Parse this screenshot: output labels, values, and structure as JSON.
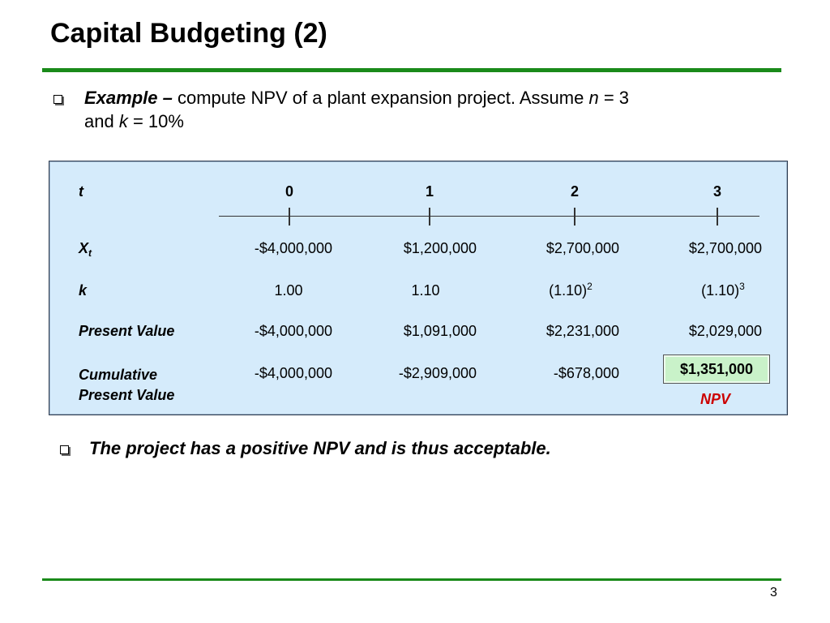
{
  "slide": {
    "title": "Capital Budgeting (2)",
    "page_number": "3"
  },
  "intro": {
    "lead": "Example –",
    "text_a": " compute NPV of a plant expansion project. Assume ",
    "n_var": "n",
    "n_eq": " = 3",
    "text_b": "and ",
    "k_var": "k",
    "k_eq": " = 10%"
  },
  "table": {
    "row_labels": {
      "t": "t",
      "x_base": "X",
      "x_sub": "t",
      "k": "k",
      "pv": "Present Value",
      "cum_line1": "Cumulative",
      "cum_line2": "Present Value"
    },
    "periods": [
      "0",
      "1",
      "2",
      "3"
    ],
    "cash_flows": [
      "-$4,000,000",
      "$1,200,000",
      "$2,700,000",
      "$2,700,000"
    ],
    "k_values": [
      {
        "base": "1.00",
        "exp": ""
      },
      {
        "base": "1.10",
        "exp": ""
      },
      {
        "base": "(1.10)",
        "exp": "2"
      },
      {
        "base": "(1.10)",
        "exp": "3"
      }
    ],
    "present_values": [
      "-$4,000,000",
      "$1,091,000",
      "$2,231,000",
      "$2,029,000"
    ],
    "cumulative": [
      "-$4,000,000",
      "-$2,909,000",
      "-$678,000",
      "$1,351,000"
    ],
    "npv_caption": "NPV"
  },
  "conclusion": "The project has a positive NPV and is thus acceptable.",
  "colors": {
    "accent_rule": "#1a8a1a",
    "panel_bg": "#d5ebfb",
    "npv_box": "#c9f2c9",
    "npv_caption": "#cc0000"
  }
}
